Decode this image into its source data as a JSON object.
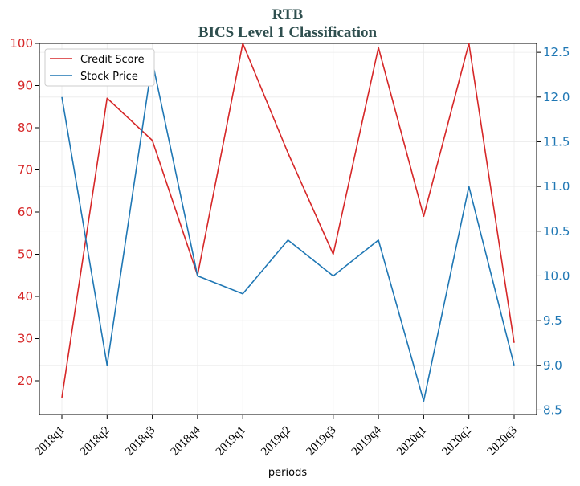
{
  "chart_data": {
    "type": "line",
    "title": "RTB",
    "subtitle": "BICS Level 1 Classification",
    "xlabel": "periods",
    "categories": [
      "2018q1",
      "2018q2",
      "2018q3",
      "2018q4",
      "2019q1",
      "2019q2",
      "2019q3",
      "2019q4",
      "2020q1",
      "2020q2",
      "2020q3"
    ],
    "series": [
      {
        "name": "Credit Score",
        "axis": "left",
        "color": "#d62728",
        "values": [
          16,
          87,
          77,
          45,
          100,
          74,
          50,
          99,
          59,
          100,
          29
        ]
      },
      {
        "name": "Stock Price",
        "axis": "right",
        "color": "#1f77b4",
        "values": [
          12.0,
          9.0,
          12.4,
          10.0,
          9.8,
          10.4,
          10.0,
          10.4,
          8.6,
          11.0,
          9.0
        ]
      }
    ],
    "ylim_left": [
      12,
      100
    ],
    "ylim_right": [
      8.45,
      12.6
    ],
    "yticks_left": [
      "20",
      "30",
      "40",
      "50",
      "60",
      "70",
      "80",
      "90",
      "100"
    ],
    "yticks_right": [
      "8.5",
      "9.0",
      "9.5",
      "10.0",
      "10.5",
      "11.0",
      "11.5",
      "12.0",
      "12.5"
    ],
    "grid": true,
    "legend": "top-left"
  }
}
